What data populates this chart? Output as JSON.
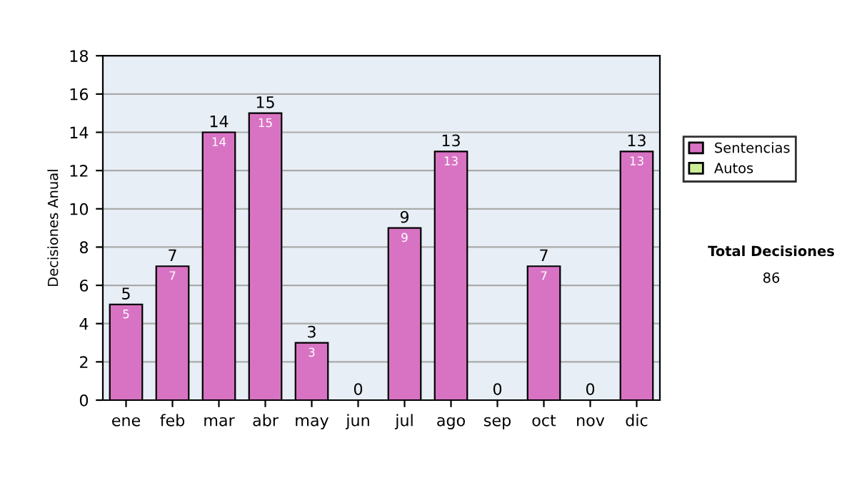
{
  "chart_data": {
    "type": "bar",
    "ylabel": "Decisiones Anual",
    "categories": [
      "ene",
      "feb",
      "mar",
      "abr",
      "may",
      "jun",
      "jul",
      "ago",
      "sep",
      "oct",
      "nov",
      "dic"
    ],
    "stacked": true,
    "series": [
      {
        "name": "Sentencias",
        "color": "#d873c3",
        "values": [
          5,
          7,
          14,
          15,
          3,
          0,
          9,
          13,
          0,
          7,
          0,
          13
        ],
        "value_labels": [
          "5",
          "7",
          "14",
          "15",
          "3",
          null,
          "9",
          "13",
          null,
          "7",
          null,
          "13"
        ]
      },
      {
        "name": "Autos",
        "color": "#ccee99",
        "values": [
          0,
          0,
          0,
          0,
          0,
          0,
          0,
          0,
          0,
          0,
          0,
          0
        ]
      }
    ],
    "totals": [
      "5",
      "7",
      "14",
      "15",
      "3",
      "0",
      "9",
      "13",
      "0",
      "7",
      "0",
      "13"
    ],
    "ylim": [
      0,
      18
    ],
    "yticks": [
      0,
      2,
      4,
      6,
      8,
      10,
      12,
      14,
      16,
      18
    ],
    "grid": "y",
    "legend": "right",
    "annotations": [
      "Total Decisiones",
      "86"
    ]
  }
}
